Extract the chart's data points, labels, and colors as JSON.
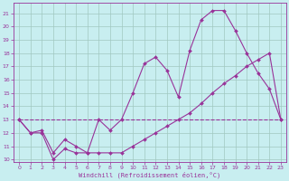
{
  "bg_color": "#c8eef0",
  "grid_color": "#a0c8c0",
  "line_color": "#993399",
  "xlim": [
    -0.5,
    23.5
  ],
  "ylim": [
    9.8,
    21.8
  ],
  "xticks": [
    0,
    1,
    2,
    3,
    4,
    5,
    6,
    7,
    8,
    9,
    10,
    11,
    12,
    13,
    14,
    15,
    16,
    17,
    18,
    19,
    20,
    21,
    22,
    23
  ],
  "yticks": [
    10,
    11,
    12,
    13,
    14,
    15,
    16,
    17,
    18,
    19,
    20,
    21
  ],
  "xlabel": "Windchill (Refroidissement éolien,°C)",
  "line1_x": [
    0,
    1,
    2,
    3,
    4,
    5,
    6,
    7,
    8,
    9,
    10,
    11,
    12,
    13,
    14,
    15,
    16,
    17,
    18,
    19,
    20,
    21,
    22,
    23
  ],
  "line1_y": [
    13.0,
    12.0,
    12.0,
    10.0,
    10.8,
    10.5,
    10.5,
    13.0,
    12.2,
    13.0,
    15.0,
    17.2,
    17.7,
    16.7,
    14.7,
    18.2,
    20.5,
    21.2,
    21.2,
    19.7,
    18.0,
    16.5,
    15.3,
    13.0
  ],
  "line2_x": [
    0,
    1,
    2,
    3,
    4,
    5,
    6,
    7,
    8,
    9,
    10,
    11,
    12,
    13,
    14,
    15,
    16,
    17,
    18,
    19,
    20,
    21,
    22,
    23
  ],
  "line2_y": [
    13.0,
    12.0,
    12.2,
    10.5,
    11.5,
    11.0,
    10.5,
    10.5,
    10.5,
    10.5,
    11.0,
    11.5,
    12.0,
    12.5,
    13.0,
    13.5,
    14.2,
    15.0,
    15.7,
    16.3,
    17.0,
    17.5,
    18.0,
    13.0
  ],
  "line3_x": [
    0,
    23
  ],
  "line3_y": [
    13.0,
    13.0
  ]
}
